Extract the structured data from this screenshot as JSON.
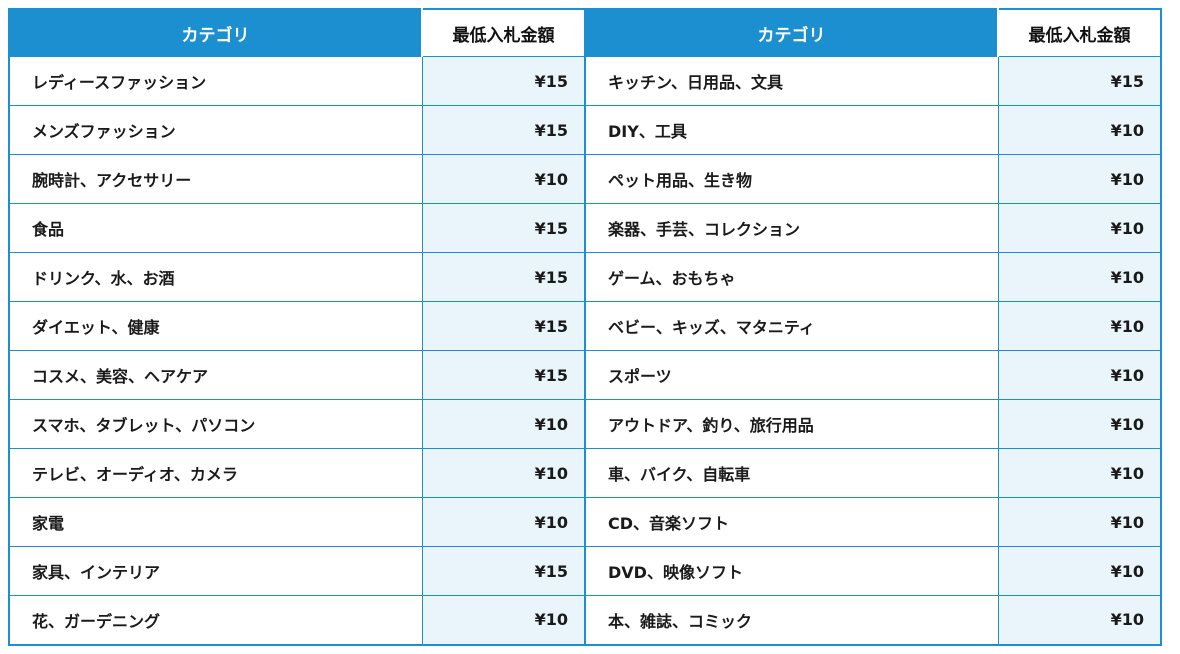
{
  "headers": {
    "category": "カテゴリ",
    "min_bid": "最低入札金額"
  },
  "rows": [
    {
      "left_category": "レディースファッション",
      "left_price": "¥15",
      "right_category": "キッチン、日用品、文具",
      "right_price": "¥15"
    },
    {
      "left_category": "メンズファッション",
      "left_price": "¥15",
      "right_category": "DIY、工具",
      "right_price": "¥10"
    },
    {
      "left_category": "腕時計、アクセサリー",
      "left_price": "¥10",
      "right_category": "ペット用品、生き物",
      "right_price": "¥10"
    },
    {
      "left_category": "食品",
      "left_price": "¥15",
      "right_category": "楽器、手芸、コレクション",
      "right_price": "¥10"
    },
    {
      "left_category": "ドリンク、水、お酒",
      "left_price": "¥15",
      "right_category": "ゲーム、おもちゃ",
      "right_price": "¥10"
    },
    {
      "left_category": "ダイエット、健康",
      "left_price": "¥15",
      "right_category": "ベビー、キッズ、マタニティ",
      "right_price": "¥10"
    },
    {
      "left_category": "コスメ、美容、ヘアケア",
      "left_price": "¥15",
      "right_category": "スポーツ",
      "right_price": "¥10"
    },
    {
      "left_category": "スマホ、タブレット、パソコン",
      "left_price": "¥10",
      "right_category": "アウトドア、釣り、旅行用品",
      "right_price": "¥10"
    },
    {
      "left_category": "テレビ、オーディオ、カメラ",
      "left_price": "¥10",
      "right_category": "車、バイク、自転車",
      "right_price": "¥10"
    },
    {
      "left_category": "家電",
      "left_price": "¥10",
      "right_category": "CD、音楽ソフト",
      "right_price": "¥10"
    },
    {
      "left_category": "家具、インテリア",
      "left_price": "¥15",
      "right_category": "DVD、映像ソフト",
      "right_price": "¥10"
    },
    {
      "left_category": "花、ガーデニング",
      "left_price": "¥10",
      "right_category": "本、雑誌、コミック",
      "right_price": "¥10"
    }
  ],
  "colors": {
    "accent": "#1c8fd0",
    "price_cell_bg": "#eaf5fb",
    "header_text": "#ffffff",
    "body_text": "#1a1a1a"
  }
}
